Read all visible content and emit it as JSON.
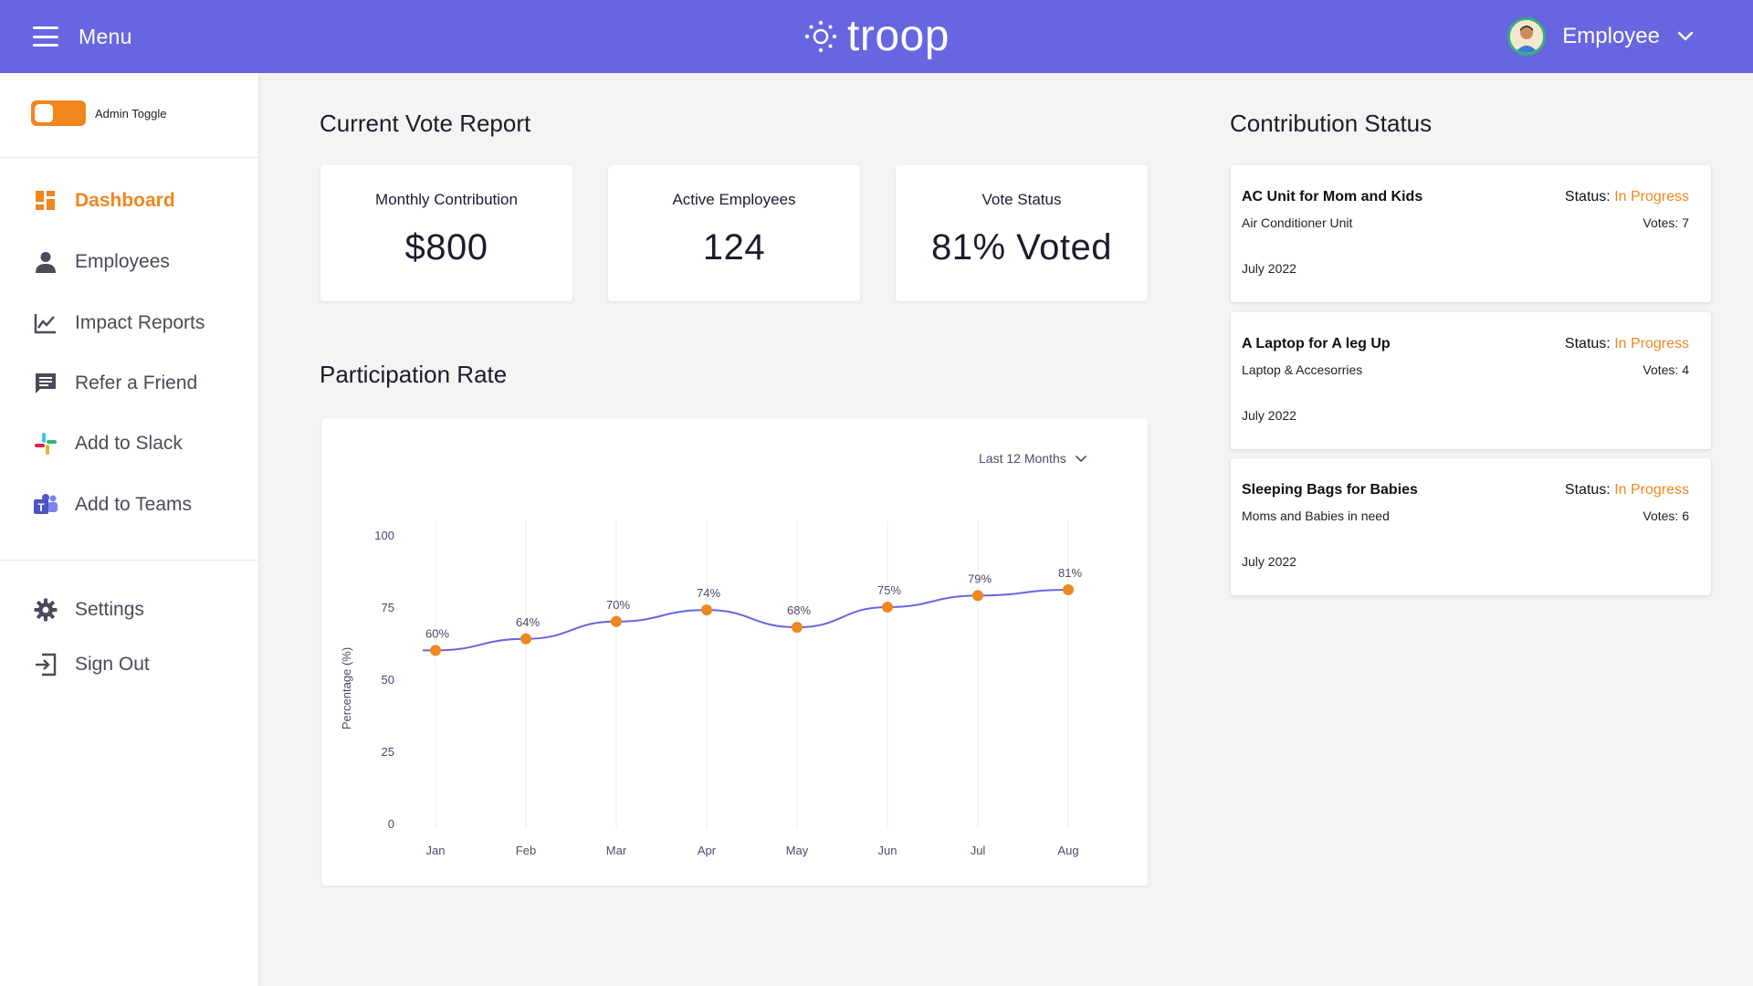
{
  "header": {
    "menu_label": "Menu",
    "brand": "troop",
    "user_label": "Employee",
    "accent": "#6765e0"
  },
  "sidebar": {
    "admin_toggle_label": "Admin Toggle",
    "admin_toggle_on": true,
    "nav": [
      {
        "label": "Dashboard",
        "icon": "dashboard-icon",
        "active": true
      },
      {
        "label": "Employees",
        "icon": "person-icon"
      },
      {
        "label": "Impact Reports",
        "icon": "chart-line-icon"
      },
      {
        "label": "Refer a Friend",
        "icon": "chat-icon"
      },
      {
        "label": "Add to Slack",
        "icon": "slack-icon"
      },
      {
        "label": "Add to Teams",
        "icon": "teams-icon"
      }
    ],
    "secondary": [
      {
        "label": "Settings",
        "icon": "gear-icon"
      },
      {
        "label": "Sign Out",
        "icon": "sign-out-icon"
      }
    ],
    "active_color": "#f0861e"
  },
  "vote_report": {
    "title": "Current Vote Report",
    "cards": [
      {
        "label": "Monthly Contribution",
        "value": "$800"
      },
      {
        "label": "Active Employees",
        "value": "124"
      },
      {
        "label": "Vote Status",
        "value": "81% Voted"
      }
    ]
  },
  "participation": {
    "title": "Participation Rate",
    "range_label": "Last 12 Months"
  },
  "chart_data": {
    "type": "line",
    "categories": [
      "Jan",
      "Feb",
      "Mar",
      "Apr",
      "May",
      "Jun",
      "Jul",
      "Aug"
    ],
    "values": [
      60,
      64,
      70,
      74,
      68,
      75,
      79,
      81
    ],
    "data_labels": [
      "60%",
      "64%",
      "70%",
      "74%",
      "68%",
      "75%",
      "79%",
      "81%"
    ],
    "ylabel": "Percentage (%)",
    "yticks": [
      0,
      25,
      50,
      75,
      100
    ],
    "ylim": [
      0,
      100
    ],
    "grid": "vertical",
    "line_color": "#6765e0",
    "point_color": "#f0861e"
  },
  "contribution_status": {
    "title": "Contribution Status",
    "status_prefix": "Status:",
    "items": [
      {
        "title": "AC Unit for Mom and Kids",
        "subtitle": "Air Conditioner Unit",
        "date": "July 2022",
        "status": "In Progress",
        "votes": "Votes: 7"
      },
      {
        "title": "A Laptop for A leg Up",
        "subtitle": "Laptop & Accesorries",
        "date": "July 2022",
        "status": "In Progress",
        "votes": "Votes: 4"
      },
      {
        "title": "Sleeping Bags for Babies",
        "subtitle": "Moms and Babies in need",
        "date": "July 2022",
        "status": "In Progress",
        "votes": "Votes: 6"
      }
    ]
  }
}
